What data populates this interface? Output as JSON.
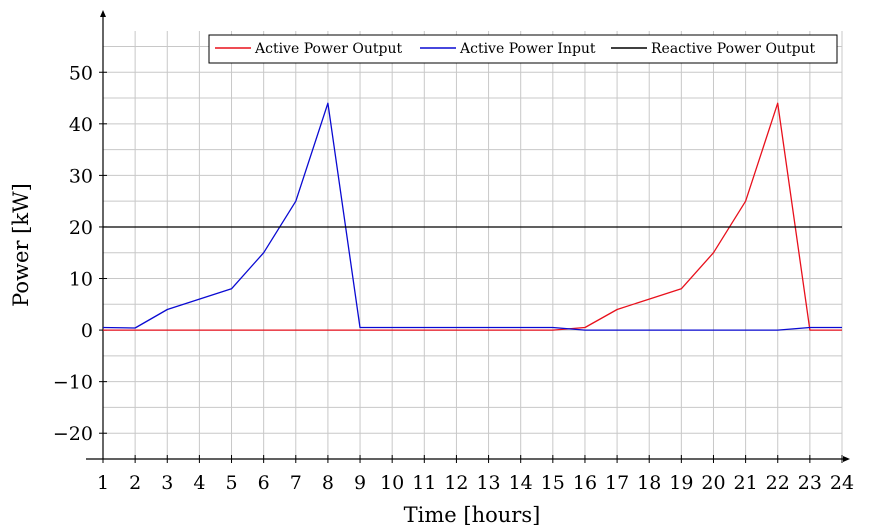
{
  "chart_data": {
    "type": "line",
    "title": "",
    "xlabel": "Time [hours]",
    "ylabel": "Power [kW]",
    "xlim": [
      1,
      24
    ],
    "ylim": [
      -25,
      58
    ],
    "x_ticks": [
      1,
      2,
      3,
      4,
      5,
      6,
      7,
      8,
      9,
      10,
      11,
      12,
      13,
      14,
      15,
      16,
      17,
      18,
      19,
      20,
      21,
      22,
      23,
      24
    ],
    "x_tick_labels": [
      "1",
      "2",
      "3",
      "4",
      "5",
      "6",
      "7",
      "8",
      "9",
      "10",
      "11",
      "12",
      "13",
      "14",
      "15",
      "16",
      "17",
      "18",
      "19",
      "20",
      "21",
      "22",
      "23",
      "24"
    ],
    "y_ticks": [
      -20,
      -10,
      0,
      10,
      20,
      30,
      40,
      50
    ],
    "y_tick_labels": [
      "−20",
      "−10",
      "0",
      "10",
      "20",
      "30",
      "40",
      "50"
    ],
    "grid": true,
    "legend_position": "top-right",
    "x": [
      1,
      2,
      3,
      4,
      5,
      6,
      7,
      8,
      9,
      10,
      11,
      12,
      13,
      14,
      15,
      16,
      17,
      18,
      19,
      20,
      21,
      22,
      23,
      24
    ],
    "series": [
      {
        "name": "Active Power Output",
        "color": "#e8101c",
        "values": [
          0,
          0,
          0,
          0,
          0,
          0,
          0,
          0,
          0,
          0,
          0,
          0,
          0,
          0,
          0,
          0.5,
          4,
          6,
          8,
          15,
          25,
          44,
          0,
          0
        ]
      },
      {
        "name": "Active Power Input",
        "color": "#0a0ad2",
        "values": [
          0.5,
          0.4,
          4,
          6,
          8,
          15,
          25,
          44,
          0.5,
          0.5,
          0.5,
          0.5,
          0.5,
          0.5,
          0.5,
          0,
          0,
          0,
          0,
          0,
          0,
          0,
          0.5,
          0.5
        ]
      },
      {
        "name": "Reactive Power Output",
        "color": "#000000",
        "values": [
          20,
          20,
          20,
          20,
          20,
          20,
          20,
          20,
          20,
          20,
          20,
          20,
          20,
          20,
          20,
          20,
          20,
          20,
          20,
          20,
          20,
          20,
          20,
          20
        ]
      }
    ]
  }
}
